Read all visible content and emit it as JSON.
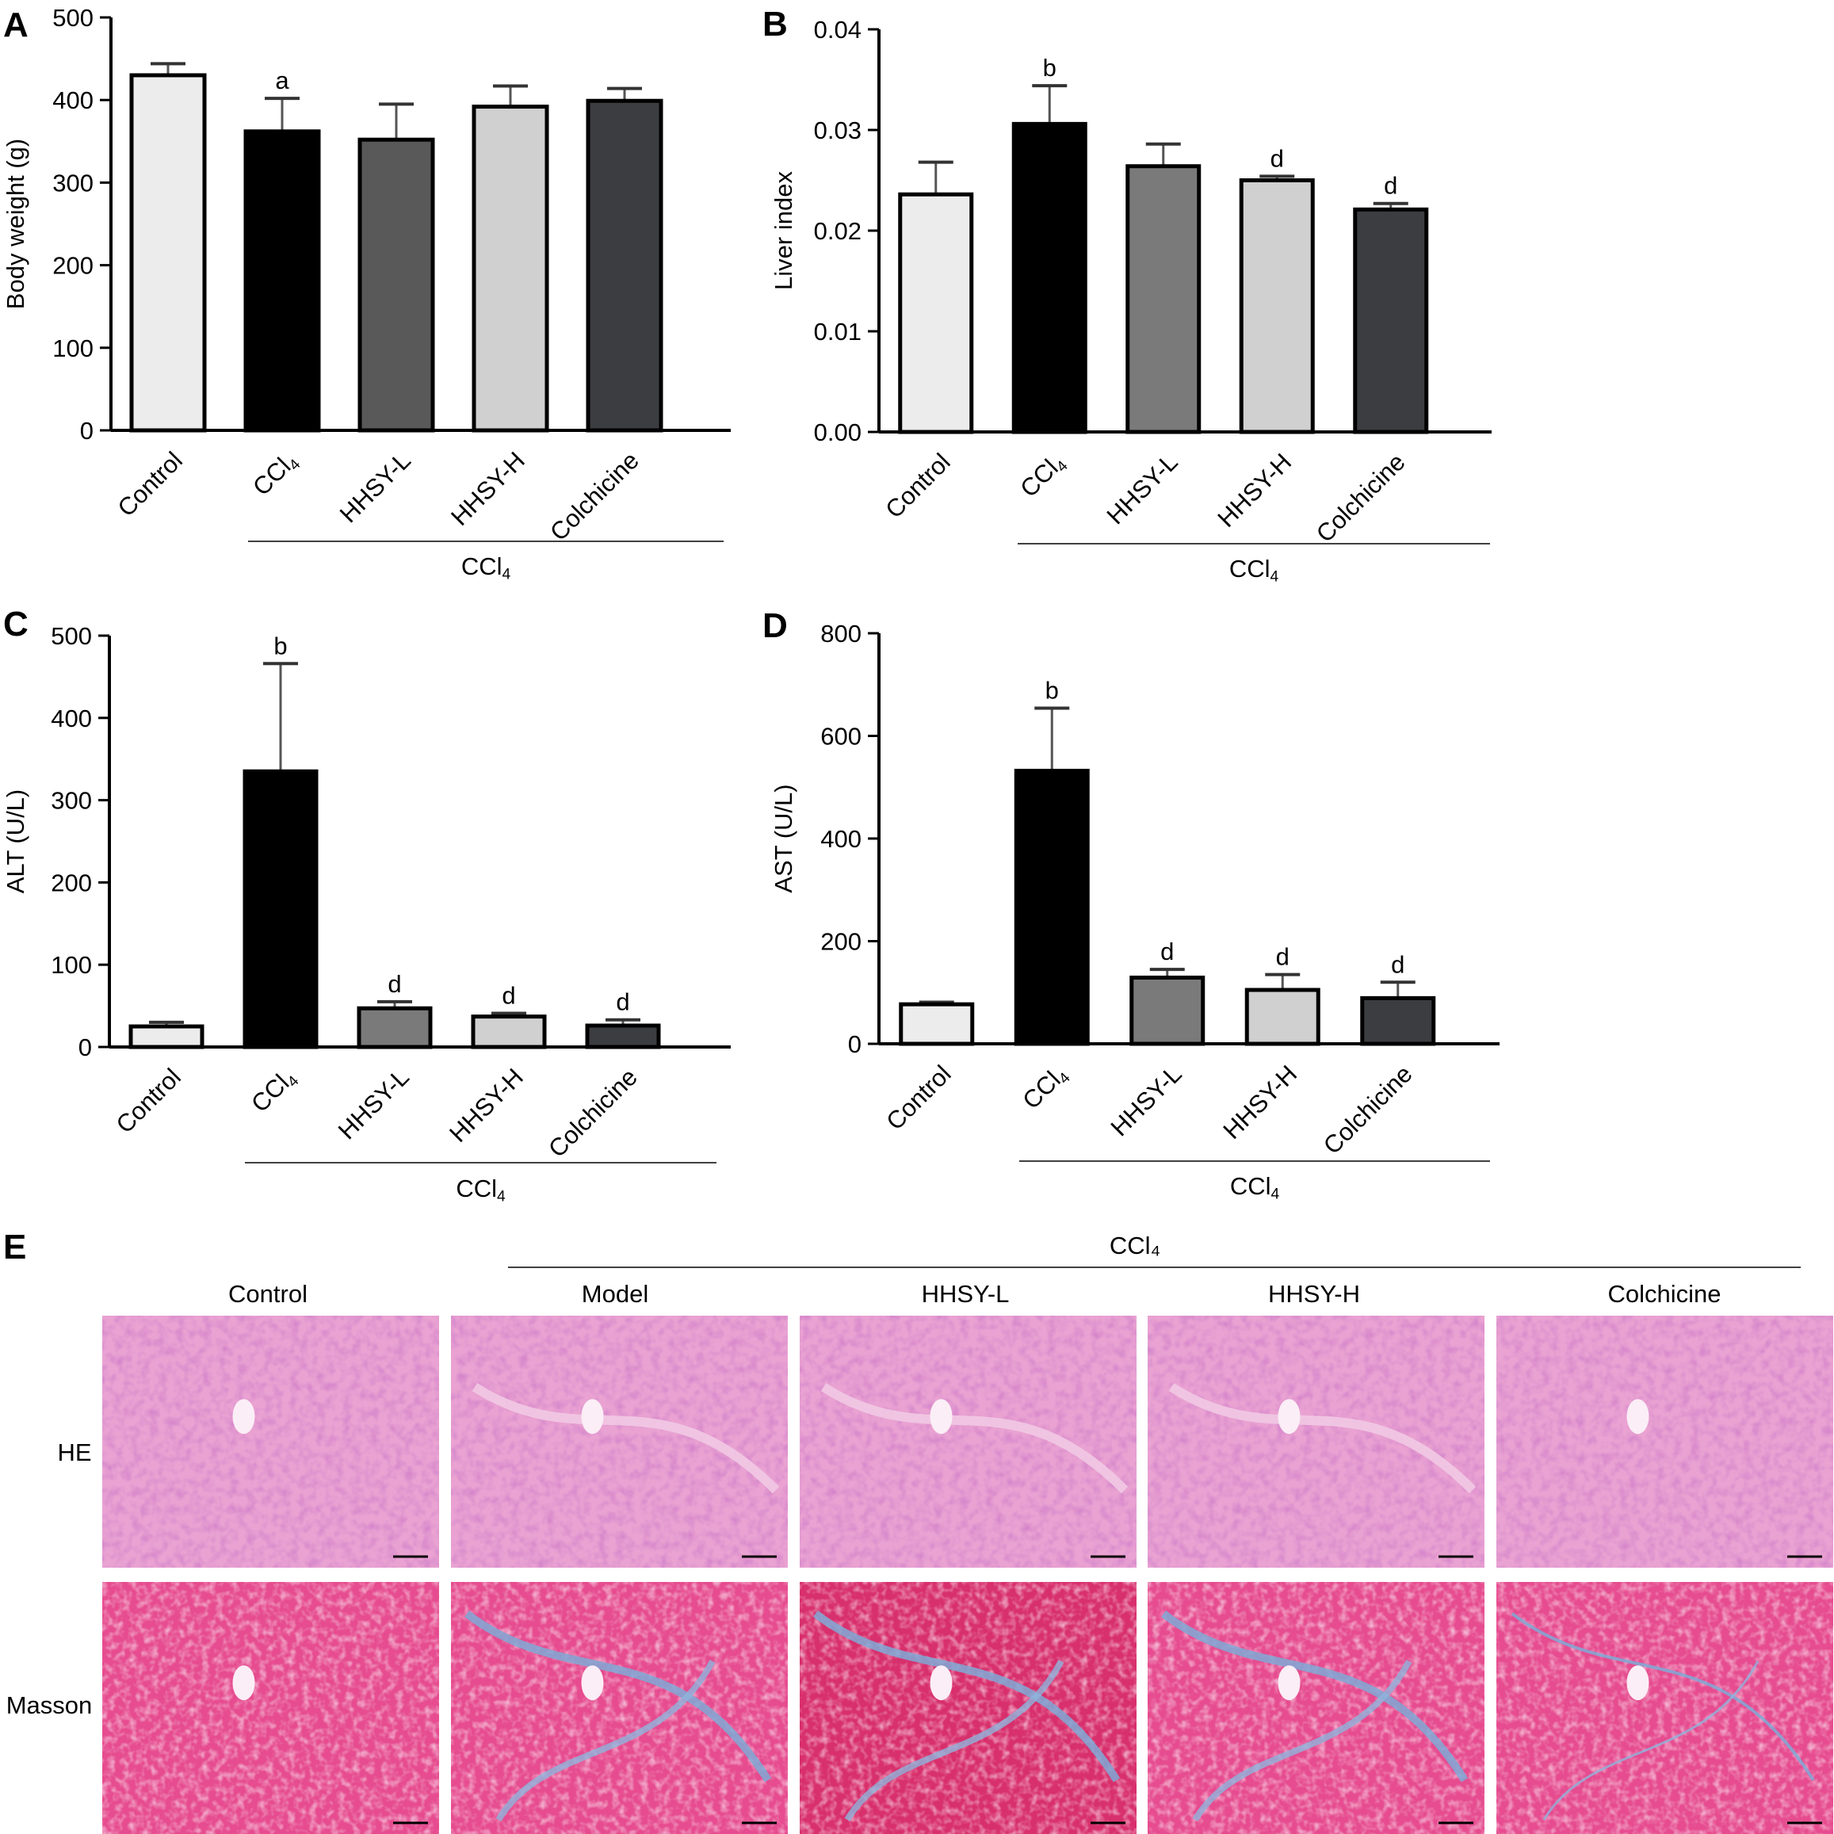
{
  "chart_data": [
    {
      "type": "bar",
      "panel_label": "A",
      "ylabel": "Body weight (g)",
      "ylim": [
        0,
        500
      ],
      "yticks": [
        "0",
        "100",
        "200",
        "300",
        "400",
        "500"
      ],
      "categories": [
        "Control",
        "CCl₄",
        "HHSY-L",
        "HHSY-H",
        "Colchicine"
      ],
      "values": [
        430,
        362,
        352,
        392,
        399
      ],
      "errors": [
        14,
        40,
        43,
        25,
        15
      ],
      "annotations": [
        "",
        "a",
        "",
        "",
        ""
      ],
      "colors": [
        "#ececec",
        "#000000",
        "#595959",
        "#d0d0d0",
        "#3c3d41"
      ],
      "group_label": "CCl₄"
    },
    {
      "type": "bar",
      "panel_label": "B",
      "ylabel": "Liver index",
      "ylim": [
        0,
        0.04
      ],
      "yticks": [
        "0.00",
        "0.01",
        "0.02",
        "0.03",
        "0.04"
      ],
      "categories": [
        "Control",
        "CCl₄",
        "HHSY-L",
        "HHSY-H",
        "Colchicine"
      ],
      "values": [
        0.0236,
        0.0306,
        0.0264,
        0.025,
        0.0221
      ],
      "errors": [
        0.0032,
        0.0038,
        0.0022,
        0.0004,
        0.0006
      ],
      "annotations": [
        "",
        "b",
        "",
        "d",
        "d"
      ],
      "colors": [
        "#ececec",
        "#000000",
        "#7a7a7a",
        "#d0d0d0",
        "#3c3d41"
      ],
      "group_label": "CCl₄"
    },
    {
      "type": "bar",
      "panel_label": "C",
      "ylabel": "ALT (U/L)",
      "ylim": [
        0,
        500
      ],
      "yticks": [
        "0",
        "100",
        "200",
        "300",
        "400",
        "500"
      ],
      "categories": [
        "Control",
        "CCl₄",
        "HHSY-L",
        "HHSY-H",
        "Colchicine"
      ],
      "values": [
        25,
        335,
        47,
        37,
        26
      ],
      "errors": [
        5,
        131,
        8,
        4,
        7
      ],
      "annotations": [
        "",
        "b",
        "d",
        "d",
        "d"
      ],
      "colors": [
        "#ececec",
        "#000000",
        "#7a7a7a",
        "#d0d0d0",
        "#3c3d41"
      ],
      "group_label": "CCl₄"
    },
    {
      "type": "bar",
      "panel_label": "D",
      "ylabel": "AST (U/L)",
      "ylim": [
        0,
        800
      ],
      "yticks": [
        "0",
        "200",
        "400",
        "600",
        "800"
      ],
      "categories": [
        "Control",
        "CCl₄",
        "HHSY-L",
        "HHSY-H",
        "Colchicine"
      ],
      "values": [
        77,
        532,
        129,
        105,
        89
      ],
      "errors": [
        4,
        122,
        16,
        30,
        31
      ],
      "annotations": [
        "",
        "b",
        "d",
        "d",
        "d"
      ],
      "colors": [
        "#ececec",
        "#000000",
        "#7a7a7a",
        "#d0d0d0",
        "#3c3d41"
      ],
      "group_label": "CCl₄"
    }
  ],
  "panel_e": {
    "label": "E",
    "group_label": "CCl₄",
    "columns": [
      "Control",
      "Model",
      "HHSY-L",
      "HHSY-H",
      "Colchicine"
    ],
    "rows": [
      "HE",
      "Masson"
    ]
  }
}
